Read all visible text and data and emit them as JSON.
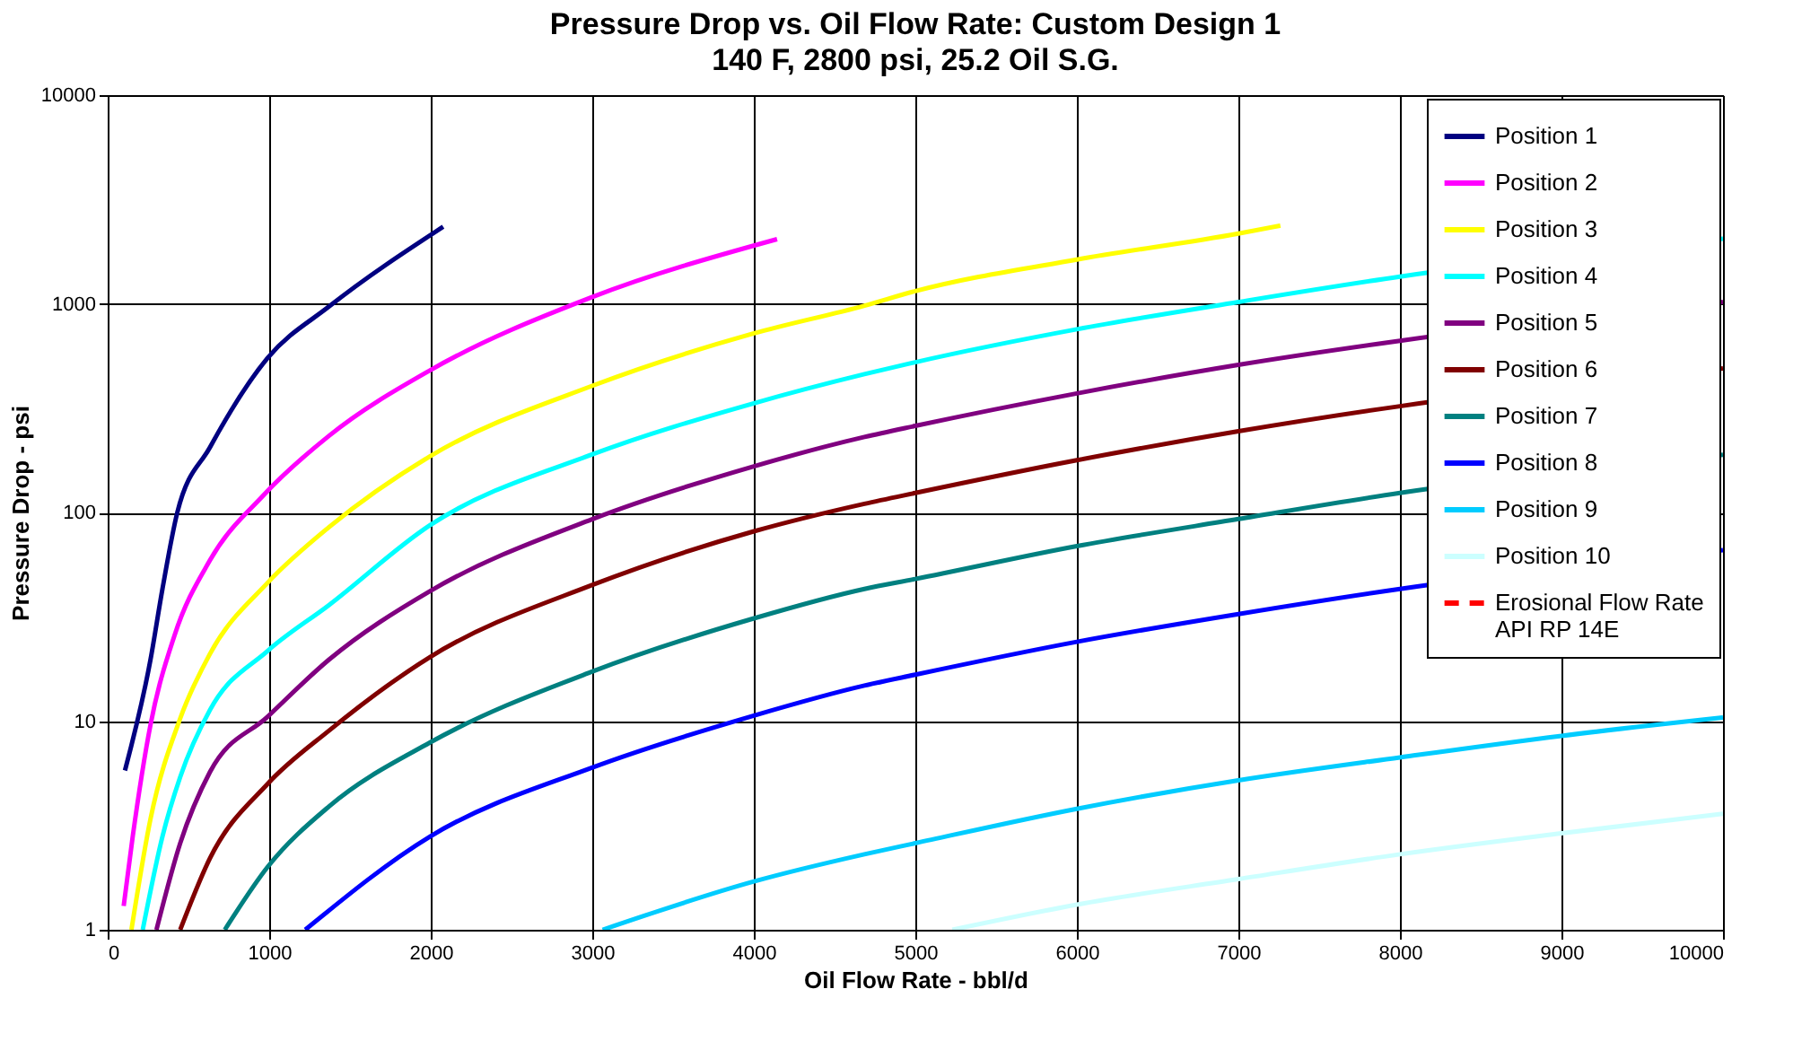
{
  "chart_data": {
    "type": "line",
    "title": "Pressure Drop vs. Oil Flow Rate:  Custom Design 1",
    "subtitle": "140 F, 2800 psi, 25.2 Oil S.G.",
    "xlabel": "Oil Flow Rate  - bbl/d",
    "ylabel": "Pressure Drop - psi",
    "xlim": [
      0,
      10000
    ],
    "ylim": [
      1,
      10000
    ],
    "xticks": [
      0,
      1000,
      2000,
      3000,
      4000,
      5000,
      6000,
      7000,
      8000,
      9000,
      10000
    ],
    "yticks": [
      1,
      10,
      100,
      1000,
      10000
    ],
    "log": "y",
    "grid": true,
    "legend": "top right",
    "line_style": "solid",
    "marker": "none",
    "series": [
      {
        "name": "Position 1",
        "color": "#000080",
        "x": [
          107,
          265,
          339,
          431,
          633,
          990,
          1370,
          2077
        ],
        "values": [
          5.8,
          19.7,
          43,
          100,
          205,
          550,
          970,
          2340
        ]
      },
      {
        "name": "Position 2",
        "color": "#ff00ff",
        "x": [
          99,
          155,
          265,
          412,
          633,
          965,
          1370,
          1996,
          2990,
          4144
        ],
        "values": [
          1.3,
          2.8,
          9.6,
          25.5,
          59,
          121,
          233,
          480,
          1070,
          2040
        ]
      },
      {
        "name": "Position 3",
        "color": "#ffff00",
        "x": [
          147,
          265,
          449,
          633,
          990,
          1370,
          1996,
          3002,
          3996,
          4685,
          5000,
          6000,
          7000,
          7260
        ],
        "values": [
          1,
          3.4,
          10.3,
          21,
          46,
          85,
          186,
          405,
          720,
          980,
          1150,
          1630,
          2170,
          2370
        ]
      },
      {
        "name": "Position 4",
        "color": "#00ffff",
        "x": [
          217,
          339,
          449,
          633,
          990,
          1370,
          1996,
          3002,
          3996,
          4685,
          5000,
          6000,
          7000,
          8000,
          10000
        ],
        "values": [
          1,
          2.8,
          5.4,
          11.3,
          21.7,
          36,
          87,
          190,
          333,
          460,
          525,
          755,
          1020,
          1350,
          2050
        ]
      },
      {
        "name": "Position 5",
        "color": "#800080",
        "x": [
          302,
          449,
          633,
          990,
          1370,
          1996,
          3002,
          3996,
          4685,
          5000,
          6000,
          7000,
          8000,
          10000
        ],
        "values": [
          1,
          2.6,
          5.7,
          10.5,
          19.7,
          42,
          93,
          166,
          230,
          260,
          372,
          510,
          665,
          1020
        ]
      },
      {
        "name": "Position 6",
        "color": "#800000",
        "x": [
          449,
          633,
          990,
          1370,
          1996,
          3002,
          3996,
          4685,
          5000,
          6000,
          7000,
          8000,
          10000
        ],
        "values": [
          1,
          2.2,
          5.0,
          9.0,
          20.3,
          45,
          81,
          110,
          124,
          178,
          245,
          323,
          490
        ]
      },
      {
        "name": "Position 7",
        "color": "#008080",
        "x": [
          725,
          990,
          1370,
          1996,
          3002,
          3996,
          4685,
          5000,
          6000,
          7000,
          8000,
          10000
        ],
        "values": [
          1,
          2.0,
          3.9,
          7.9,
          17.3,
          31,
          43,
          48,
          69,
          93,
          124,
          189
        ]
      },
      {
        "name": "Position 8",
        "color": "#0000ff",
        "x": [
          1223,
          1996,
          3002,
          3996,
          4685,
          5000,
          6000,
          7000,
          8000,
          10000
        ],
        "values": [
          1,
          2.8,
          6.0,
          10.6,
          14.8,
          16.7,
          24,
          32.6,
          43,
          66
        ]
      },
      {
        "name": "Position 9",
        "color": "#00ccff",
        "x": [
          3064,
          3996,
          4685,
          5000,
          6000,
          7000,
          8000,
          9000,
          10000
        ],
        "values": [
          1,
          1.7,
          2.3,
          2.6,
          3.8,
          5.2,
          6.7,
          8.5,
          10.4
        ]
      },
      {
        "name": "Position 10",
        "color": "#ccffff",
        "x": [
          5229,
          6000,
          7000,
          8000,
          9000,
          10000
        ],
        "values": [
          1,
          1.32,
          1.75,
          2.3,
          2.9,
          3.6
        ]
      },
      {
        "name": "Erosional Flow Rate\nAPI RP 14E",
        "color": "#ff0000",
        "line_style": "dashed"
      }
    ]
  }
}
